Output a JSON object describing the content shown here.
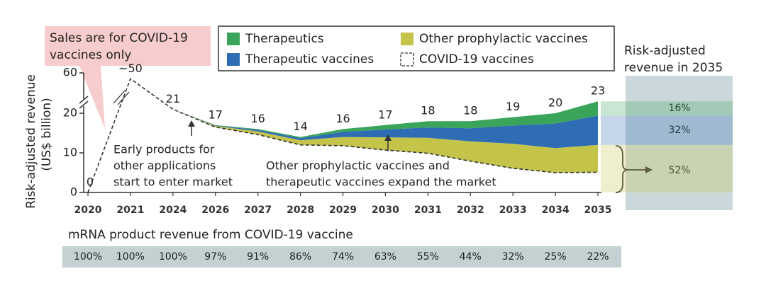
{
  "chart_data": {
    "type": "stacked_area",
    "ylabel": [
      "Risk-adjusted revenue",
      "(US$ billion)"
    ],
    "categories": [
      "2020",
      "2021",
      "2024",
      "2026",
      "2027",
      "2028",
      "2029",
      "2030",
      "2031",
      "2032",
      "2033",
      "2034",
      "2035"
    ],
    "ylim": [
      0,
      60
    ],
    "yticks": [
      0,
      10,
      20,
      60
    ],
    "series": [
      {
        "name": "COVID-19 vaccines",
        "color": "#333333",
        "line_style": "dashed",
        "values": [
          0,
          50,
          21,
          16.5,
          14.6,
          12,
          11.8,
          10.7,
          9.9,
          7.9,
          6.1,
          5,
          5.1
        ]
      },
      {
        "name": "Other prophylactic vaccines",
        "color": "#c4c44a",
        "values": [
          null,
          null,
          0,
          0.3,
          0.8,
          1.2,
          2.2,
          3.2,
          3.9,
          5.0,
          6.2,
          6.2,
          6.9
        ]
      },
      {
        "name": "Therapeutic vaccines",
        "color": "#2e6db4",
        "values": [
          null,
          null,
          0,
          0.1,
          0.4,
          0.5,
          1.3,
          2.0,
          2.6,
          3.3,
          4.6,
          6.2,
          7.4
        ]
      },
      {
        "name": "Therapeutics",
        "color": "#3aa45a",
        "values": [
          null,
          null,
          0,
          0.1,
          0.2,
          0.3,
          0.7,
          1.1,
          1.6,
          1.8,
          2.1,
          2.6,
          3.6
        ]
      }
    ],
    "data_labels": [
      0,
      {
        "value": 50,
        "label": "~50"
      },
      21,
      17,
      16,
      14,
      16,
      17,
      18,
      18,
      19,
      20,
      23
    ],
    "annotations": [
      [
        "Sales are for COVID-19",
        "vaccines only"
      ],
      [
        "Early products for",
        "other applications",
        "start to enter market"
      ],
      [
        "Other prophylactic vaccines and",
        "therapeutic vaccines expand the market"
      ]
    ],
    "share_2035": {
      "title": [
        "Risk-adjusted",
        "revenue in 2035"
      ],
      "labels": [
        "16%",
        "32%",
        "52%"
      ]
    },
    "covid_share_row": {
      "title": "mRNA product revenue from COVID-19 vaccine",
      "labels": [
        "100%",
        "100%",
        "100%",
        "97%",
        "91%",
        "86%",
        "74%",
        "63%",
        "55%",
        "44%",
        "32%",
        "25%",
        "22%"
      ]
    }
  }
}
